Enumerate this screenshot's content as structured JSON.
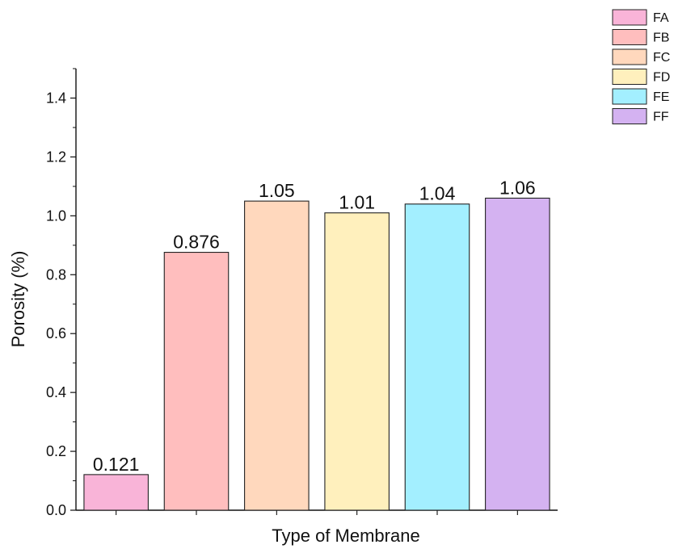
{
  "chart_data": {
    "type": "bar",
    "categories": [
      "FA",
      "FB",
      "FC",
      "FD",
      "FE",
      "FF"
    ],
    "values": [
      0.121,
      0.876,
      1.05,
      1.01,
      1.04,
      1.06
    ],
    "data_labels": [
      "0.121",
      "0.876",
      "1.05",
      "1.01",
      "1.04",
      "1.06"
    ],
    "colors": [
      "#f9b4d8",
      "#ffbebe",
      "#ffd8bd",
      "#fff0bd",
      "#a3efff",
      "#d4b2f1"
    ],
    "bar_outline_color": "#222222",
    "xlabel": "Type of Membrane",
    "ylabel": "Porosity (%)",
    "ylim": [
      0,
      1.5
    ],
    "yticks": [
      0,
      0.2,
      0.4,
      0.6,
      0.8,
      1.0,
      1.2,
      1.4
    ],
    "ytick_labels": [
      "0.0",
      "0.2",
      "0.4",
      "0.6",
      "0.8",
      "1.0",
      "1.2",
      "1.4"
    ],
    "grid": false,
    "legend_position": "top-right",
    "legend": [
      {
        "label": "FA",
        "color": "#f9b4d8"
      },
      {
        "label": "FB",
        "color": "#ffbebe"
      },
      {
        "label": "FC",
        "color": "#ffd8bd"
      },
      {
        "label": "FD",
        "color": "#fff0bd"
      },
      {
        "label": "FE",
        "color": "#a3efff"
      },
      {
        "label": "FF",
        "color": "#d4b2f1"
      }
    ]
  }
}
